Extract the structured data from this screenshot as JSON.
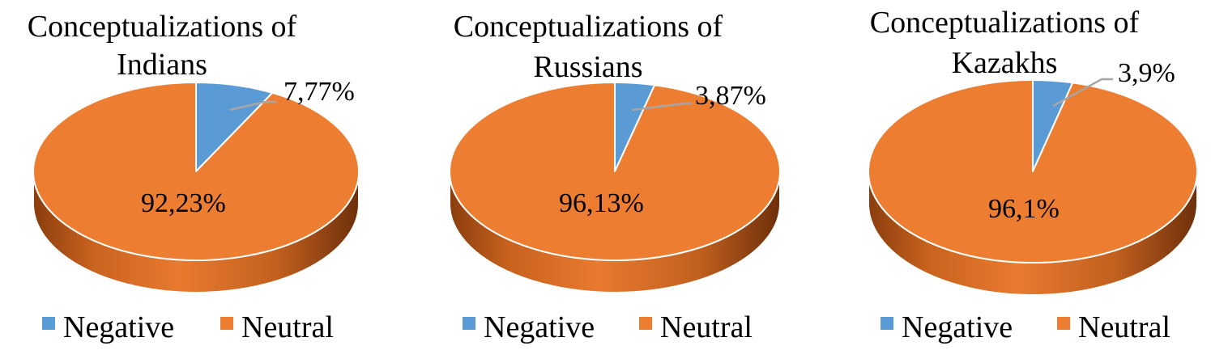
{
  "colors": {
    "negative": "#5b9bd5",
    "neutral": "#ed7d31"
  },
  "chart_data": [
    {
      "type": "pie",
      "title_lines": [
        "Conceptualizations of",
        "Indians"
      ],
      "slices": [
        {
          "name": "Negative",
          "value": 7.77,
          "label": "7,77%"
        },
        {
          "name": "Neutral",
          "value": 92.23,
          "label": "92,23%"
        }
      ],
      "legend": {
        "placement": "bottom",
        "entries": [
          "Negative",
          "Neutral"
        ]
      }
    },
    {
      "type": "pie",
      "title_lines": [
        "Conceptualizations of",
        "Russians"
      ],
      "slices": [
        {
          "name": "Negative",
          "value": 3.87,
          "label": "3,87%"
        },
        {
          "name": "Neutral",
          "value": 96.13,
          "label": "96,13%"
        }
      ],
      "legend": {
        "placement": "bottom",
        "entries": [
          "Negative",
          "Neutral"
        ]
      }
    },
    {
      "type": "pie",
      "title_lines": [
        "Conceptualizations of",
        "Kazakhs"
      ],
      "slices": [
        {
          "name": "Negative",
          "value": 3.9,
          "label": "3,9%"
        },
        {
          "name": "Neutral",
          "value": 96.1,
          "label": "96,1%"
        }
      ],
      "legend": {
        "placement": "bottom",
        "entries": [
          "Negative",
          "Neutral"
        ]
      }
    }
  ]
}
